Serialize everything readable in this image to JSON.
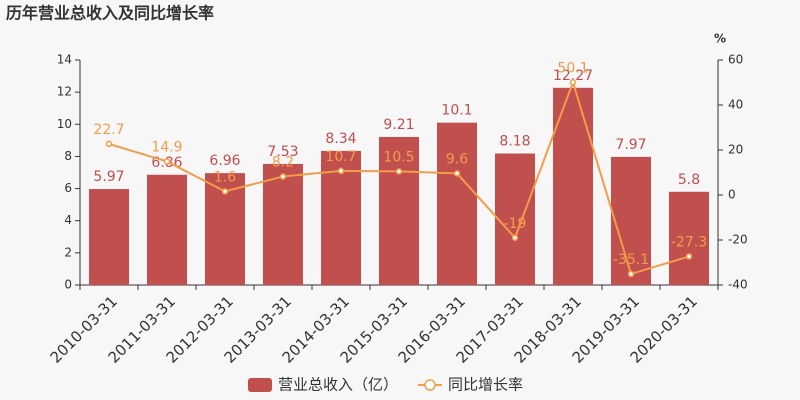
{
  "chart_data": {
    "type": "bar",
    "title": "历年营业总收入及同比增长率",
    "categories": [
      "2010-03-31",
      "2011-03-31",
      "2012-03-31",
      "2013-03-31",
      "2014-03-31",
      "2015-03-31",
      "2016-03-31",
      "2017-03-31",
      "2018-03-31",
      "2019-03-31",
      "2020-03-31"
    ],
    "series": [
      {
        "name": "营业总收入（亿）",
        "type": "bar",
        "color": "#c14f4d",
        "values": [
          5.97,
          6.86,
          6.96,
          7.53,
          8.34,
          9.21,
          10.1,
          8.18,
          12.27,
          7.97,
          5.8
        ]
      },
      {
        "name": "同比增长率",
        "type": "line",
        "axis": "y2",
        "color": "#f39c4a",
        "values": [
          22.7,
          14.9,
          1.6,
          8.2,
          10.7,
          10.5,
          9.6,
          -19,
          50.1,
          -35.1,
          -27.3
        ]
      }
    ],
    "ylim": [
      0,
      14
    ],
    "yticks": [
      0,
      2,
      4,
      6,
      8,
      10,
      12,
      14
    ],
    "y2lim": [
      -40,
      60
    ],
    "y2ticks": [
      -40,
      -20,
      0,
      20,
      40,
      60
    ],
    "y2label": "%",
    "grid": false
  }
}
